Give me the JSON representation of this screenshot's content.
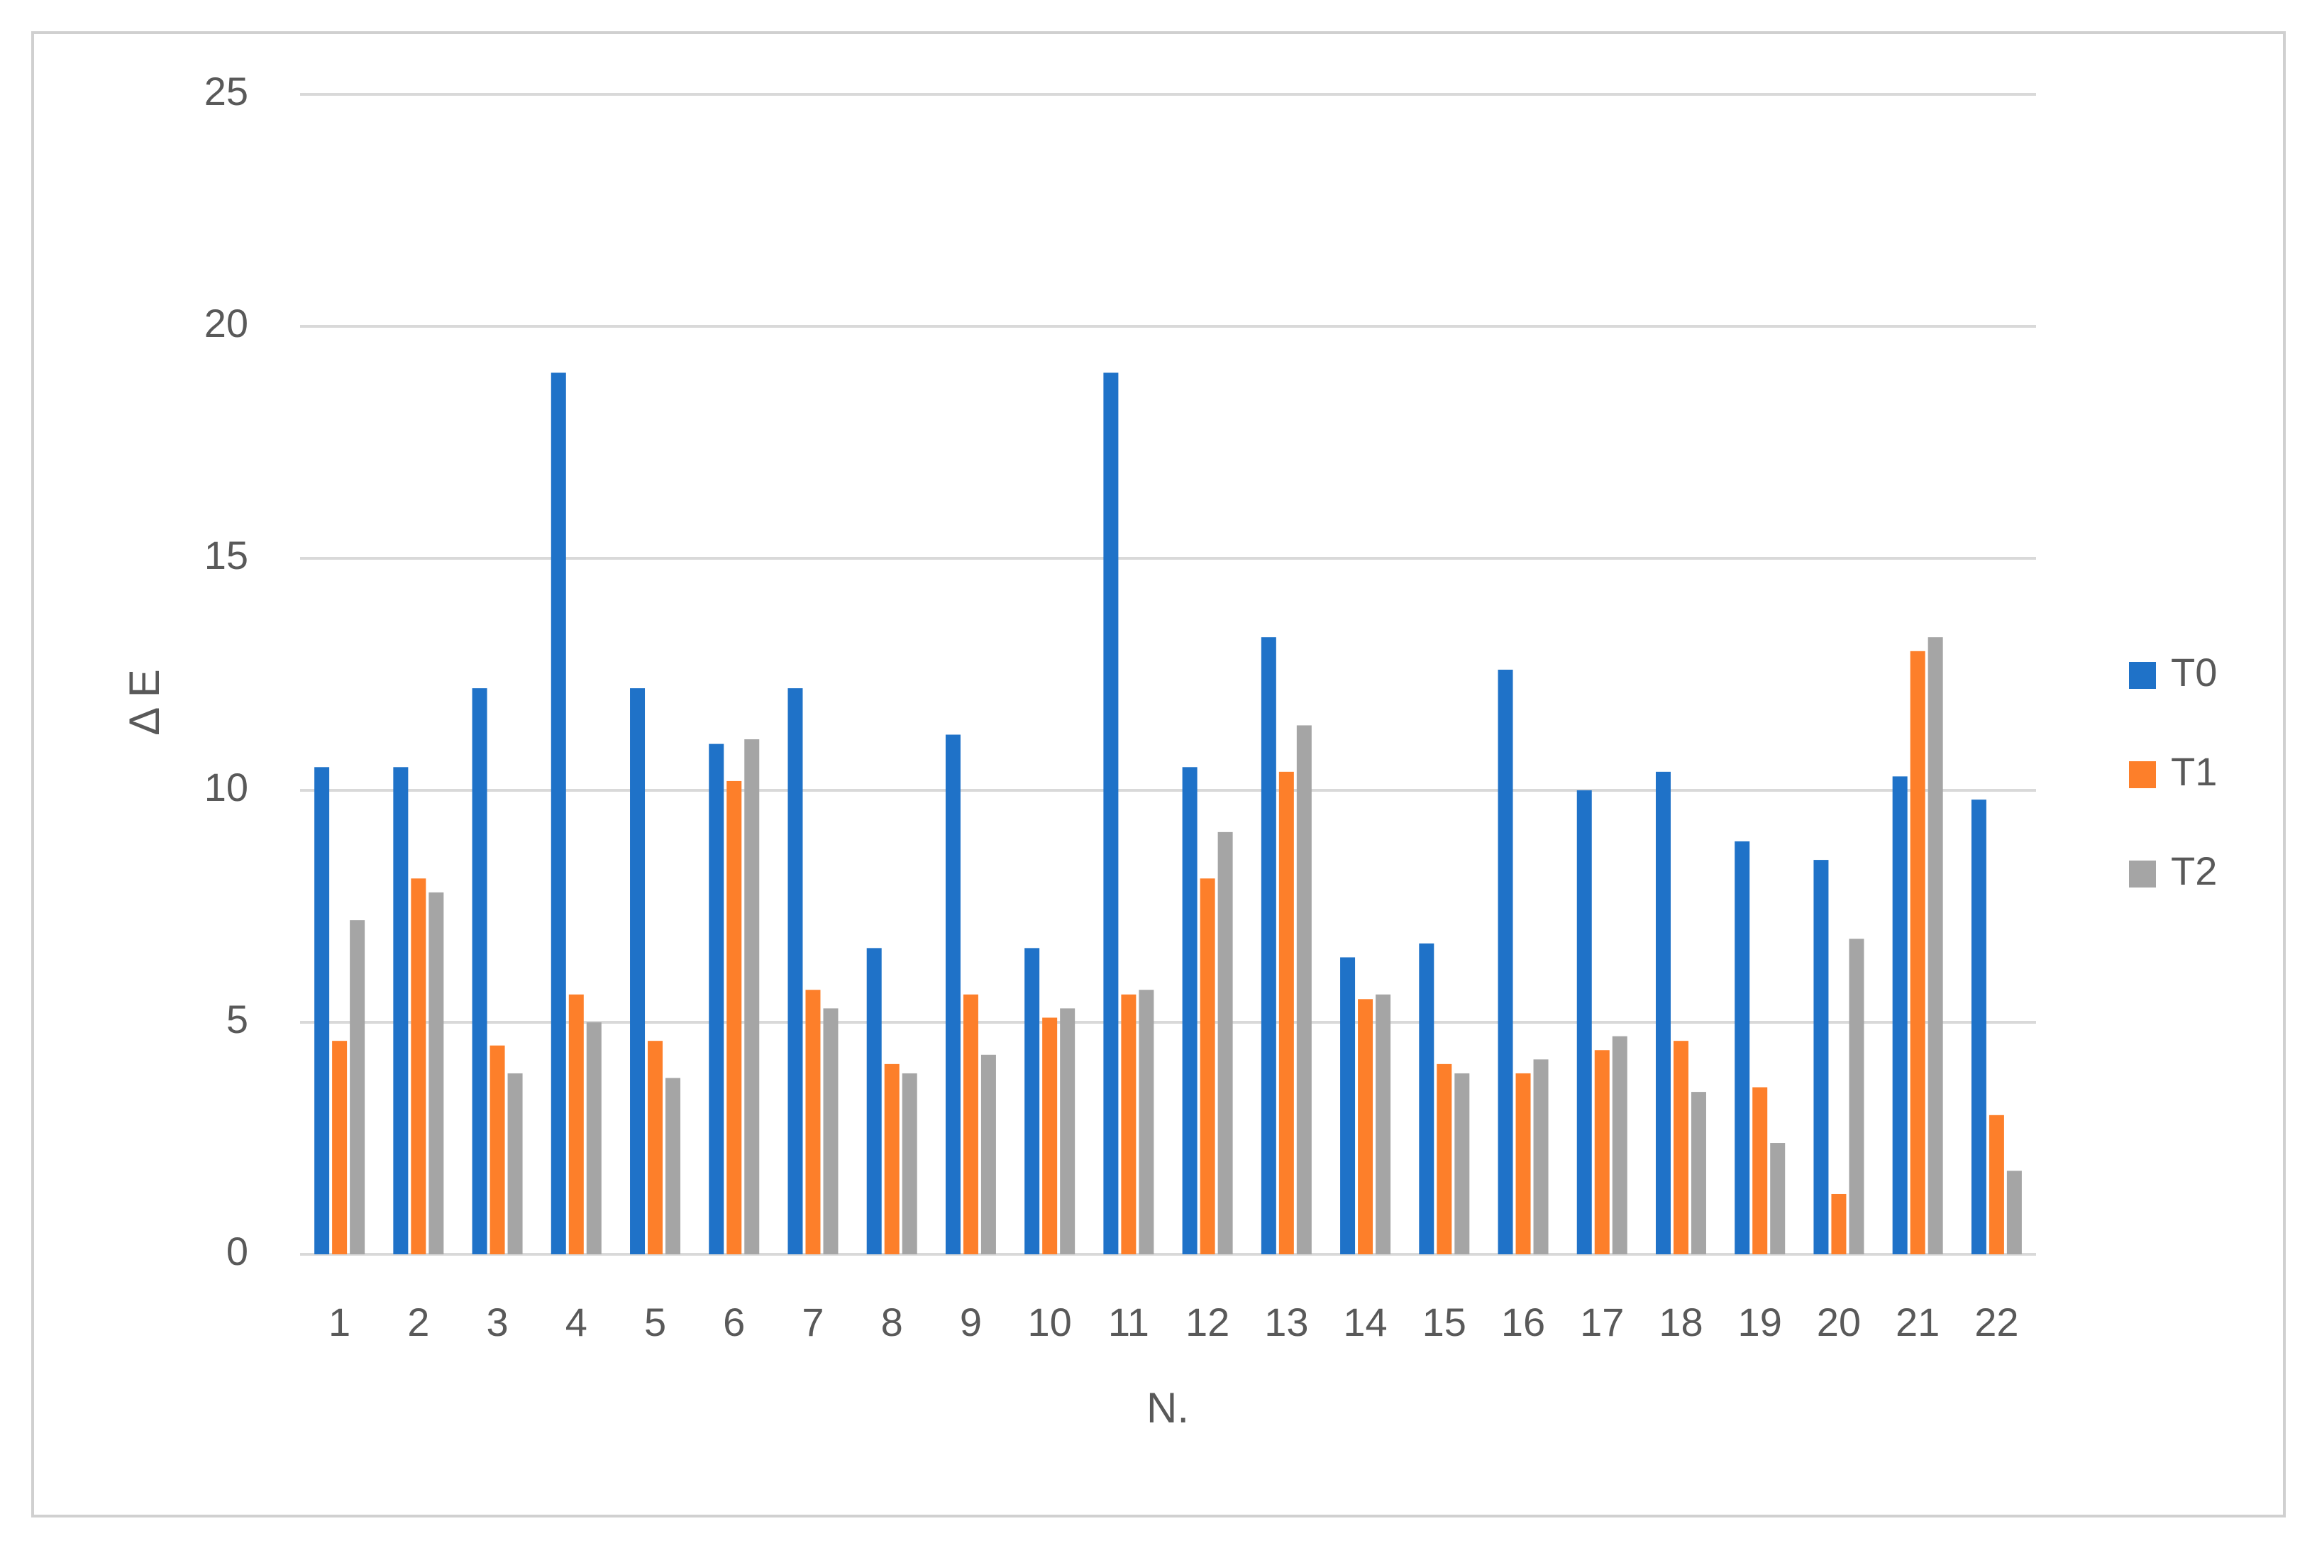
{
  "chart_data": {
    "type": "bar",
    "x_label": "N.",
    "y_label": "Δ E",
    "categories": [
      "1",
      "2",
      "3",
      "4",
      "5",
      "6",
      "7",
      "8",
      "9",
      "10",
      "11",
      "12",
      "13",
      "14",
      "15",
      "16",
      "17",
      "18",
      "19",
      "20",
      "21",
      "22"
    ],
    "series": [
      {
        "name": "T0",
        "color": "#1f72c8",
        "values": [
          10.5,
          10.5,
          12.2,
          19.0,
          12.2,
          11.0,
          12.2,
          6.6,
          11.2,
          6.6,
          19.0,
          10.5,
          13.3,
          6.4,
          6.7,
          12.6,
          10.0,
          10.4,
          8.9,
          8.5,
          10.3,
          9.8
        ]
      },
      {
        "name": "T1",
        "color": "#fd7f2a",
        "values": [
          4.6,
          8.1,
          4.5,
          5.6,
          4.6,
          10.2,
          5.7,
          4.1,
          5.6,
          5.1,
          5.6,
          8.1,
          10.4,
          5.5,
          4.1,
          3.9,
          4.4,
          4.6,
          3.6,
          1.3,
          13.0,
          3.0
        ]
      },
      {
        "name": "T2",
        "color": "#a5a5a5",
        "values": [
          7.2,
          7.8,
          3.9,
          5.0,
          3.8,
          11.1,
          5.3,
          3.9,
          4.3,
          5.3,
          5.7,
          9.1,
          11.4,
          5.6,
          3.9,
          4.2,
          4.7,
          3.5,
          2.4,
          6.8,
          13.3,
          1.8
        ]
      }
    ],
    "ylim": [
      0,
      25
    ],
    "yticks": [
      0,
      5,
      10,
      15,
      20,
      25
    ],
    "grid": true,
    "legend": "right"
  }
}
